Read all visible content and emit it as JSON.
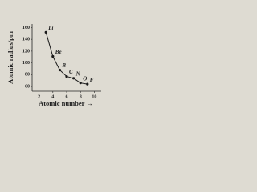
{
  "chart_data": {
    "type": "line",
    "y_label": "Atomic radius/pm",
    "x_label": "Atomic number →",
    "x": [
      3,
      4,
      5,
      6,
      7,
      8,
      9
    ],
    "values": [
      152,
      111,
      88,
      77,
      74,
      66,
      64
    ],
    "point_labels": [
      "Li",
      "Be",
      "B",
      "C",
      "N",
      "O",
      "F"
    ],
    "color": "#1a1a1a",
    "xlim": [
      1,
      11
    ],
    "xticks": [
      2,
      4,
      6,
      8,
      10
    ],
    "ylim": [
      52,
      166
    ],
    "yticks": [
      60,
      80,
      100,
      120,
      140,
      160
    ]
  }
}
